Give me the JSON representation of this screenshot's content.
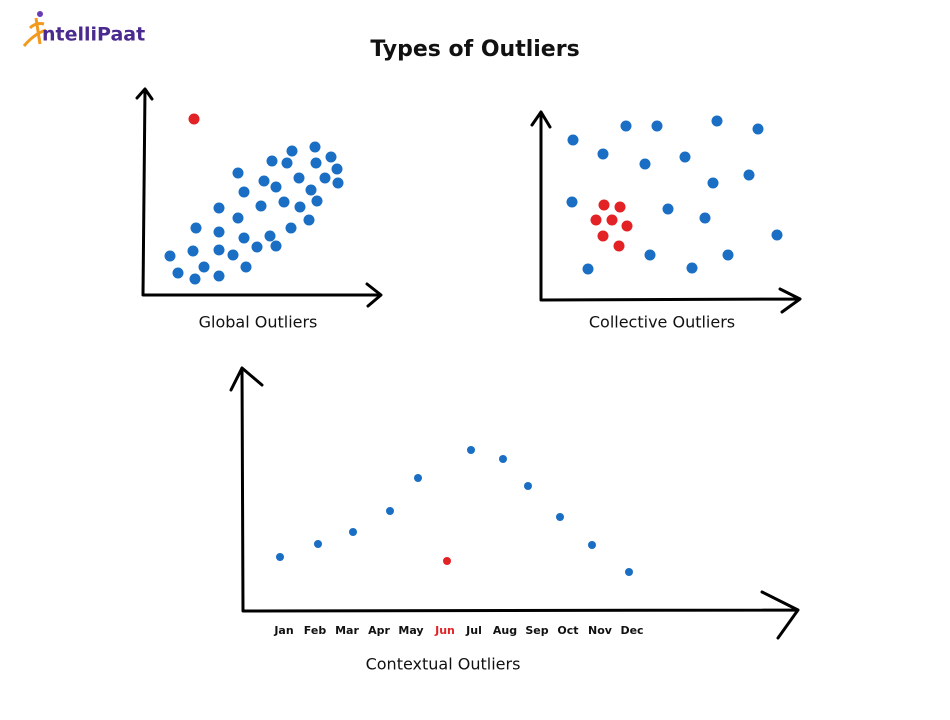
{
  "logo": {
    "text": "ntelliPaat"
  },
  "title": "Types of Outliers",
  "panels": [
    {
      "label": "Global Outliers"
    },
    {
      "label": "Collective Outliers"
    },
    {
      "label": "Contextual Outliers",
      "months": [
        "Jan",
        "Feb",
        "Mar",
        "Apr",
        "May",
        "Jun",
        "Jul",
        "Aug",
        "Sep",
        "Oct",
        "Nov",
        "Dec"
      ]
    }
  ]
}
